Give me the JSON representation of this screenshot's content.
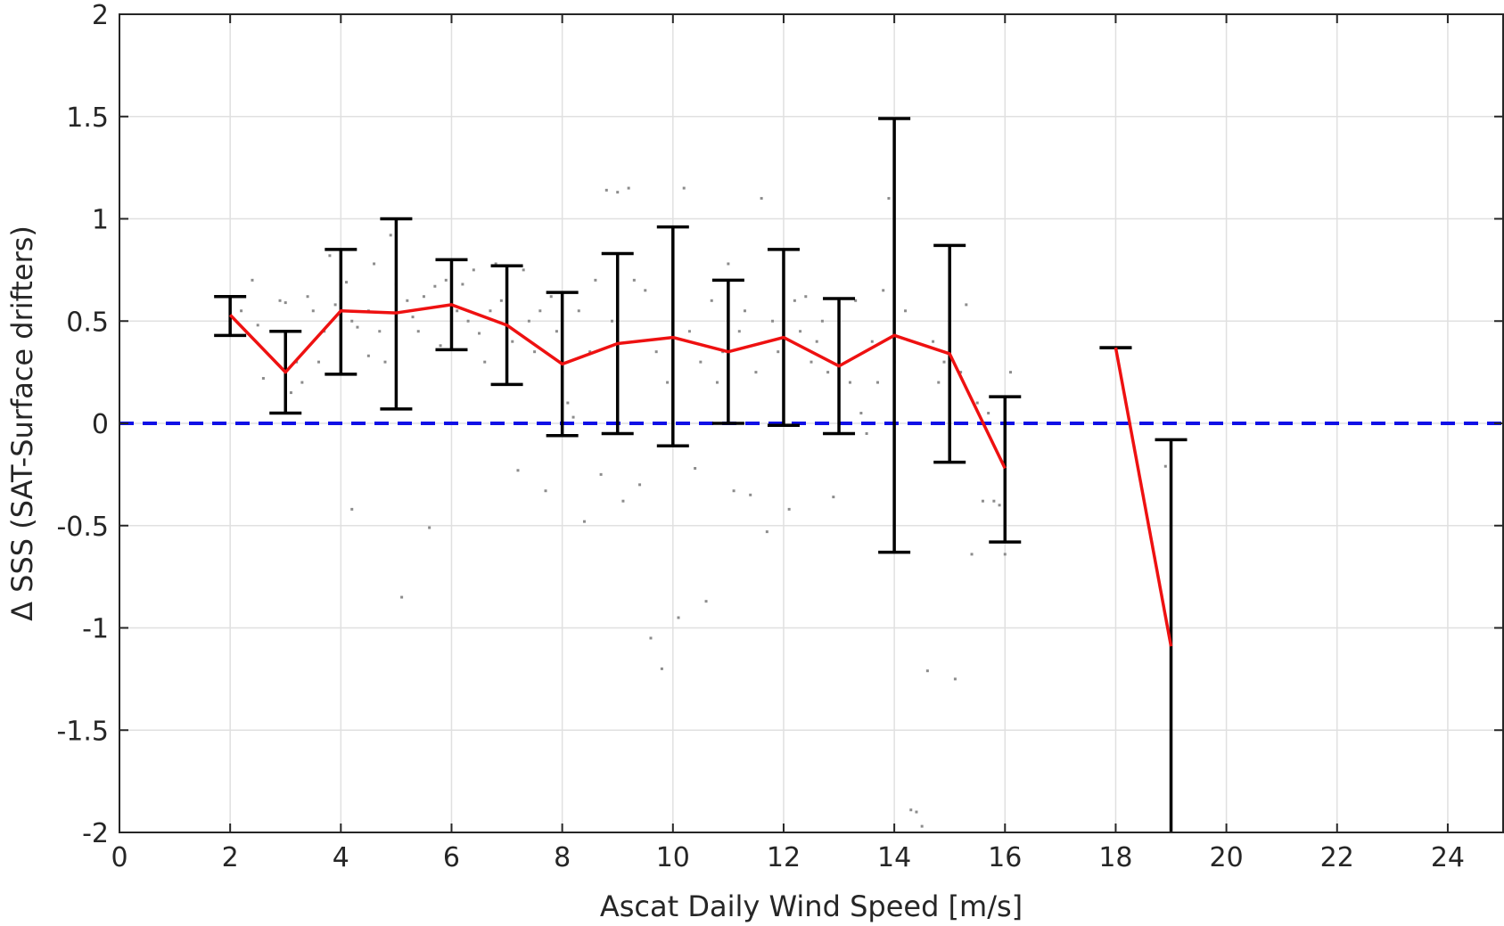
{
  "chart_data": {
    "type": "line",
    "title": "",
    "xlabel": "Ascat Daily Wind Speed [m/s]",
    "ylabel": "Δ SSS (SAT-Surface drifters)",
    "xlim": [
      0,
      25
    ],
    "ylim": [
      -2,
      2
    ],
    "xticks": [
      0,
      2,
      4,
      6,
      8,
      10,
      12,
      14,
      16,
      18,
      20,
      22,
      24
    ],
    "xtick_labels": [
      "0",
      "2",
      "4",
      "6",
      "8",
      "10",
      "12",
      "14",
      "16",
      "18",
      "20",
      "22",
      "24"
    ],
    "yticks": [
      2,
      1.5,
      1,
      0.5,
      0,
      -0.5,
      -1,
      -1.5,
      -2
    ],
    "ytick_labels": [
      "2",
      "1.5",
      "1",
      "0.5",
      "0",
      "-0.5",
      "-1",
      "-1.5",
      "-2"
    ],
    "grid": true,
    "reference_line": {
      "y": 0,
      "style": "dashed",
      "color": "#1010e6"
    },
    "mean_line": {
      "color": "#ee1111",
      "segments": [
        [
          [
            2,
            0.53
          ],
          [
            3,
            0.25
          ],
          [
            4,
            0.55
          ],
          [
            5,
            0.54
          ],
          [
            6,
            0.58
          ],
          [
            7,
            0.48
          ],
          [
            8,
            0.29
          ],
          [
            9,
            0.39
          ],
          [
            10,
            0.42
          ],
          [
            11,
            0.35
          ],
          [
            12,
            0.42
          ],
          [
            13,
            0.28
          ],
          [
            14,
            0.43
          ],
          [
            15,
            0.34
          ],
          [
            16,
            -0.22
          ]
        ],
        [
          [
            18,
            0.37
          ],
          [
            19,
            -1.09
          ]
        ]
      ]
    },
    "error_bars": [
      {
        "x": 2,
        "low": 0.43,
        "high": 0.62
      },
      {
        "x": 3,
        "low": 0.05,
        "high": 0.45
      },
      {
        "x": 4,
        "low": 0.24,
        "high": 0.85
      },
      {
        "x": 5,
        "low": 0.07,
        "high": 1.0
      },
      {
        "x": 6,
        "low": 0.36,
        "high": 0.8
      },
      {
        "x": 7,
        "low": 0.19,
        "high": 0.77
      },
      {
        "x": 8,
        "low": -0.06,
        "high": 0.64
      },
      {
        "x": 9,
        "low": -0.05,
        "high": 0.83
      },
      {
        "x": 10,
        "low": -0.11,
        "high": 0.96
      },
      {
        "x": 11,
        "low": 0.0,
        "high": 0.7
      },
      {
        "x": 12,
        "low": -0.01,
        "high": 0.85
      },
      {
        "x": 13,
        "low": -0.05,
        "high": 0.61
      },
      {
        "x": 14,
        "low": -0.63,
        "high": 1.49
      },
      {
        "x": 15,
        "low": -0.19,
        "high": 0.87
      },
      {
        "x": 16,
        "low": -0.58,
        "high": 0.13
      },
      {
        "x": 18,
        "low": 0.37,
        "high": 0.37
      },
      {
        "x": 19,
        "low": -2.0,
        "high": -0.08
      }
    ],
    "scatter_color": "#8c8c8c",
    "scatter_points": [
      [
        2.2,
        0.55
      ],
      [
        2.4,
        0.7
      ],
      [
        2.5,
        0.48
      ],
      [
        2.6,
        0.22
      ],
      [
        2.8,
        0.45
      ],
      [
        2.9,
        0.6
      ],
      [
        3.0,
        0.59
      ],
      [
        3.1,
        0.15
      ],
      [
        3.2,
        0.3
      ],
      [
        3.3,
        0.2
      ],
      [
        3.4,
        0.62
      ],
      [
        3.5,
        0.55
      ],
      [
        3.6,
        0.3
      ],
      [
        3.7,
        0.45
      ],
      [
        3.8,
        0.82
      ],
      [
        3.9,
        0.58
      ],
      [
        4.0,
        0.62
      ],
      [
        4.1,
        0.69
      ],
      [
        4.2,
        0.5
      ],
      [
        4.2,
        -0.42
      ],
      [
        4.3,
        0.47
      ],
      [
        4.5,
        0.55
      ],
      [
        4.5,
        0.33
      ],
      [
        4.6,
        0.78
      ],
      [
        4.7,
        0.45
      ],
      [
        4.8,
        0.3
      ],
      [
        4.9,
        0.92
      ],
      [
        5.0,
        0.5
      ],
      [
        5.0,
        0.68
      ],
      [
        5.1,
        -0.85
      ],
      [
        5.2,
        0.6
      ],
      [
        5.3,
        0.52
      ],
      [
        5.4,
        0.45
      ],
      [
        5.5,
        0.62
      ],
      [
        5.6,
        -0.51
      ],
      [
        5.7,
        0.67
      ],
      [
        5.8,
        0.38
      ],
      [
        5.9,
        0.7
      ],
      [
        6.0,
        0.63
      ],
      [
        6.1,
        0.55
      ],
      [
        6.2,
        0.68
      ],
      [
        6.3,
        0.5
      ],
      [
        6.4,
        0.75
      ],
      [
        6.5,
        0.44
      ],
      [
        6.6,
        0.3
      ],
      [
        6.7,
        0.55
      ],
      [
        6.8,
        0.78
      ],
      [
        6.9,
        0.6
      ],
      [
        7.0,
        0.23
      ],
      [
        7.1,
        0.4
      ],
      [
        7.2,
        -0.23
      ],
      [
        7.3,
        0.75
      ],
      [
        7.4,
        0.5
      ],
      [
        7.5,
        0.35
      ],
      [
        7.6,
        0.55
      ],
      [
        7.7,
        -0.33
      ],
      [
        7.8,
        0.62
      ],
      [
        7.9,
        0.45
      ],
      [
        8.0,
        0.25
      ],
      [
        8.1,
        0.1
      ],
      [
        8.2,
        0.03
      ],
      [
        8.3,
        0.55
      ],
      [
        8.4,
        -0.48
      ],
      [
        8.5,
        0.35
      ],
      [
        8.6,
        0.7
      ],
      [
        8.7,
        -0.25
      ],
      [
        8.8,
        1.14
      ],
      [
        8.9,
        0.5
      ],
      [
        9.0,
        1.13
      ],
      [
        9.1,
        -0.38
      ],
      [
        9.2,
        1.15
      ],
      [
        9.3,
        0.7
      ],
      [
        9.4,
        -0.3
      ],
      [
        9.5,
        0.65
      ],
      [
        9.6,
        -1.05
      ],
      [
        9.7,
        0.35
      ],
      [
        9.8,
        -1.2
      ],
      [
        9.9,
        0.2
      ],
      [
        10.0,
        0.68
      ],
      [
        10.1,
        -0.95
      ],
      [
        10.2,
        1.15
      ],
      [
        10.3,
        0.45
      ],
      [
        10.4,
        -0.22
      ],
      [
        10.5,
        0.3
      ],
      [
        10.6,
        -0.87
      ],
      [
        10.7,
        0.6
      ],
      [
        10.8,
        0.2
      ],
      [
        10.9,
        0.35
      ],
      [
        11.0,
        0.78
      ],
      [
        11.1,
        -0.33
      ],
      [
        11.2,
        0.45
      ],
      [
        11.3,
        0.55
      ],
      [
        11.4,
        -0.35
      ],
      [
        11.5,
        0.25
      ],
      [
        11.6,
        1.1
      ],
      [
        11.7,
        -0.53
      ],
      [
        11.8,
        0.5
      ],
      [
        11.9,
        0.35
      ],
      [
        12.0,
        0.78
      ],
      [
        12.1,
        -0.42
      ],
      [
        12.2,
        0.6
      ],
      [
        12.3,
        0.45
      ],
      [
        12.4,
        0.62
      ],
      [
        12.5,
        0.3
      ],
      [
        12.6,
        0.4
      ],
      [
        12.7,
        0.5
      ],
      [
        12.8,
        0.25
      ],
      [
        12.9,
        -0.36
      ],
      [
        13.0,
        0.55
      ],
      [
        13.2,
        0.2
      ],
      [
        13.3,
        0.6
      ],
      [
        13.4,
        0.05
      ],
      [
        13.5,
        -0.05
      ],
      [
        13.6,
        0.4
      ],
      [
        13.7,
        0.2
      ],
      [
        13.8,
        0.65
      ],
      [
        13.9,
        1.1
      ],
      [
        14.0,
        0.3
      ],
      [
        14.2,
        0.55
      ],
      [
        14.3,
        -1.89
      ],
      [
        14.4,
        -1.9
      ],
      [
        14.5,
        -1.97
      ],
      [
        14.6,
        -1.21
      ],
      [
        14.7,
        0.4
      ],
      [
        14.8,
        0.2
      ],
      [
        14.9,
        0.3
      ],
      [
        15.0,
        0.6
      ],
      [
        15.1,
        -1.25
      ],
      [
        15.2,
        0.25
      ],
      [
        15.3,
        0.58
      ],
      [
        15.4,
        -0.64
      ],
      [
        15.5,
        0.1
      ],
      [
        15.6,
        -0.38
      ],
      [
        15.7,
        0.05
      ],
      [
        15.8,
        -0.38
      ],
      [
        15.9,
        -0.4
      ],
      [
        16.0,
        -0.64
      ],
      [
        16.1,
        0.25
      ],
      [
        18.9,
        -0.21
      ],
      [
        19.0,
        -1.97
      ]
    ]
  }
}
